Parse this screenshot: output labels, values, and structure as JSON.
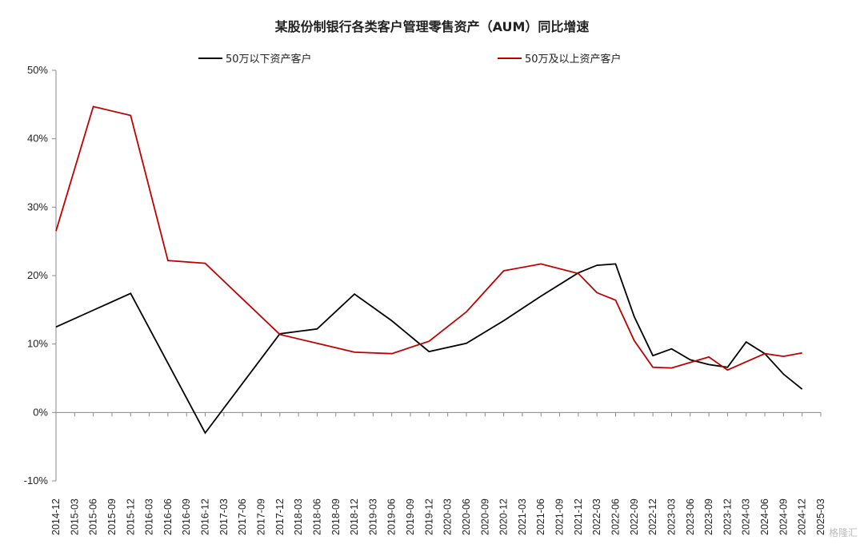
{
  "chart_data": {
    "type": "line",
    "title": "某股份制银行各类客户管理零售资产（AUM）同比增速",
    "x": [
      "2014-12",
      "2015-03",
      "2015-06",
      "2015-09",
      "2015-12",
      "2016-03",
      "2016-06",
      "2016-09",
      "2016-12",
      "2017-03",
      "2017-06",
      "2017-09",
      "2017-12",
      "2018-03",
      "2018-06",
      "2018-09",
      "2018-12",
      "2019-03",
      "2019-06",
      "2019-09",
      "2019-12",
      "2020-03",
      "2020-06",
      "2020-09",
      "2020-12",
      "2021-03",
      "2021-06",
      "2021-09",
      "2021-12",
      "2022-03",
      "2022-06",
      "2022-09",
      "2022-12",
      "2023-03",
      "2023-06",
      "2023-09",
      "2023-12",
      "2024-03",
      "2024-06",
      "2024-09",
      "2024-12",
      "2025-03"
    ],
    "ylim": [
      -10,
      50
    ],
    "yticks": [
      "-10%",
      "0%",
      "10%",
      "20%",
      "30%",
      "40%",
      "50%"
    ],
    "series": [
      {
        "name": "50万以下资产客户",
        "color": "#000000",
        "points": [
          [
            "2014-12",
            12.5
          ],
          [
            "2015-12",
            17.4
          ],
          [
            "2016-12",
            -3.0
          ],
          [
            "2017-12",
            11.5
          ],
          [
            "2018-06",
            12.2
          ],
          [
            "2018-12",
            17.3
          ],
          [
            "2019-06",
            13.4
          ],
          [
            "2019-12",
            8.9
          ],
          [
            "2020-06",
            10.1
          ],
          [
            "2020-12",
            13.4
          ],
          [
            "2021-06",
            17.0
          ],
          [
            "2021-12",
            20.4
          ],
          [
            "2022-03",
            21.5
          ],
          [
            "2022-06",
            21.7
          ],
          [
            "2022-09",
            14.0
          ],
          [
            "2022-12",
            8.3
          ],
          [
            "2023-03",
            9.3
          ],
          [
            "2023-06",
            7.7
          ],
          [
            "2023-09",
            7.0
          ],
          [
            "2023-12",
            6.6
          ],
          [
            "2024-03",
            10.3
          ],
          [
            "2024-06",
            8.6
          ],
          [
            "2024-09",
            5.6
          ],
          [
            "2024-12",
            3.4
          ]
        ]
      },
      {
        "name": "50万及以上资产客户",
        "color": "#c00000",
        "points": [
          [
            "2014-12",
            26.5
          ],
          [
            "2015-06",
            44.7
          ],
          [
            "2015-12",
            43.4
          ],
          [
            "2016-06",
            22.2
          ],
          [
            "2016-12",
            21.8
          ],
          [
            "2017-12",
            11.4
          ],
          [
            "2018-06",
            10.1
          ],
          [
            "2018-12",
            8.8
          ],
          [
            "2019-06",
            8.6
          ],
          [
            "2019-12",
            10.4
          ],
          [
            "2020-06",
            14.7
          ],
          [
            "2020-12",
            20.7
          ],
          [
            "2021-06",
            21.7
          ],
          [
            "2021-12",
            20.3
          ],
          [
            "2022-03",
            17.5
          ],
          [
            "2022-06",
            16.4
          ],
          [
            "2022-09",
            10.5
          ],
          [
            "2022-12",
            6.6
          ],
          [
            "2023-03",
            6.5
          ],
          [
            "2023-06",
            7.3
          ],
          [
            "2023-09",
            8.1
          ],
          [
            "2023-12",
            6.2
          ],
          [
            "2024-03",
            7.4
          ],
          [
            "2024-06",
            8.6
          ],
          [
            "2024-09",
            8.2
          ],
          [
            "2024-12",
            8.7
          ]
        ]
      }
    ],
    "legend_position": "top",
    "grid": false
  },
  "watermark": "格隆汇"
}
